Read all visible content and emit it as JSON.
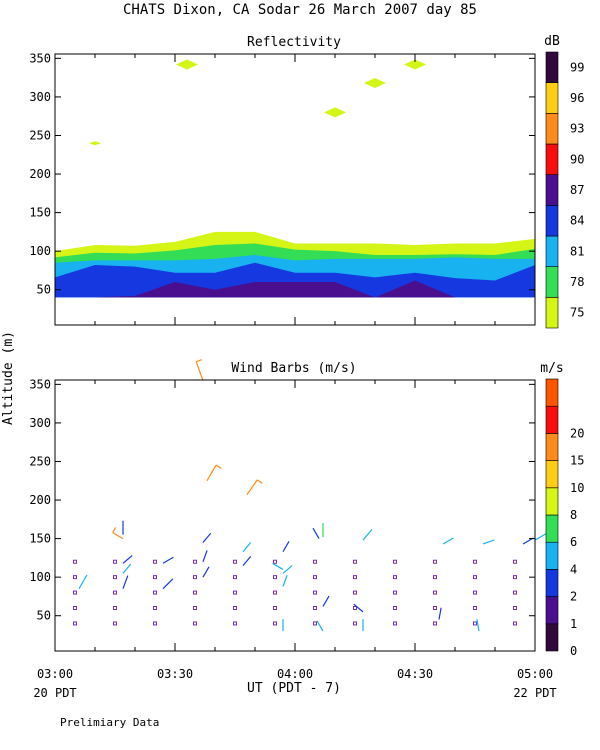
{
  "title": "CHATS Dixon, CA   Sodar  26 March 2007  day  85",
  "footer_note": "Prelimiary Data",
  "xlabel": "UT  (PDT - 7)",
  "ylabel": "Altitude (m)",
  "x_start_label": "20 PDT",
  "x_end_label": "22 PDT",
  "chart_data": [
    {
      "type": "area",
      "title": "Reflectivity",
      "unit_label": "dB",
      "xlim": [
        "03:00",
        "05:00"
      ],
      "xticks": [
        "03:00",
        "03:30",
        "04:00",
        "04:30",
        "05:00"
      ],
      "ylim": [
        25,
        355
      ],
      "yticks": [
        50,
        100,
        150,
        200,
        250,
        300,
        350
      ],
      "colorbar": {
        "levels": [
          75,
          78,
          81,
          84,
          87,
          90,
          93,
          96,
          99
        ],
        "colors": [
          "#d4f516",
          "#33dd55",
          "#18b2f0",
          "#1638e0",
          "#4a0f8f",
          "#fa0d0d",
          "#ff8c1a",
          "#ffcc14",
          "#2f0a3a"
        ]
      },
      "x_minutes": [
        0,
        10,
        20,
        30,
        40,
        50,
        60,
        70,
        80,
        90,
        100,
        110,
        120
      ],
      "bands": [
        {
          "level": 75,
          "top": [
            100,
            108,
            107,
            112,
            125,
            125,
            110,
            110,
            110,
            108,
            110,
            110,
            116
          ]
        },
        {
          "level": 78,
          "top": [
            92,
            98,
            97,
            101,
            108,
            110,
            102,
            100,
            95,
            95,
            96,
            95,
            103
          ]
        },
        {
          "level": 81,
          "top": [
            85,
            88,
            88,
            88,
            90,
            95,
            88,
            90,
            90,
            90,
            92,
            90,
            90
          ]
        },
        {
          "level": 84,
          "top": [
            66,
            82,
            80,
            72,
            72,
            85,
            72,
            72,
            66,
            72,
            65,
            62,
            82
          ]
        },
        {
          "level": 87,
          "top": [
            40,
            40,
            42,
            60,
            50,
            60,
            60,
            60,
            40,
            62,
            40,
            40,
            40
          ]
        }
      ],
      "patches": [
        {
          "time": "03:10",
          "altitude": 240,
          "level": 75
        },
        {
          "time": "03:33",
          "altitude": 342,
          "level": 75
        },
        {
          "time": "04:10",
          "altitude": 280,
          "level": 75
        },
        {
          "time": "04:20",
          "altitude": 318,
          "level": 75
        },
        {
          "time": "04:30",
          "altitude": 342,
          "level": 75
        }
      ]
    },
    {
      "type": "scatter",
      "title": "Wind Barbs (m/s)",
      "unit_label": "m/s",
      "xlim": [
        "03:00",
        "05:00"
      ],
      "xticks": [
        "03:00",
        "03:30",
        "04:00",
        "04:30",
        "05:00"
      ],
      "ylim": [
        25,
        355
      ],
      "yticks": [
        50,
        100,
        150,
        200,
        250,
        300,
        350
      ],
      "colorbar": {
        "levels": [
          0,
          1,
          2,
          4,
          6,
          8,
          10,
          15,
          20
        ],
        "colors": [
          "#2f0a3a",
          "#4a0f8f",
          "#1638e0",
          "#18b2f0",
          "#33dd55",
          "#d4f516",
          "#ffcc14",
          "#ff8c1a",
          "#fa0d0d",
          "#ff5500"
        ]
      },
      "calm_times_min": [
        5,
        15,
        25,
        35,
        45,
        55,
        65,
        75,
        85,
        95,
        105,
        115
      ],
      "calm_altitudes": [
        40,
        60,
        80,
        100,
        120
      ],
      "barbs": [
        {
          "t": 6,
          "alt": 85,
          "ang": 30,
          "len": 16,
          "c": "#18b2f0"
        },
        {
          "t": 17,
          "alt": 155,
          "ang": 0,
          "len": 14,
          "c": "#1638e0"
        },
        {
          "t": 17,
          "alt": 150,
          "ang": 300,
          "len": 12,
          "c": "#ff8c1a"
        },
        {
          "t": 17,
          "alt": 85,
          "ang": 20,
          "len": 14,
          "c": "#1638e0"
        },
        {
          "t": 17,
          "alt": 105,
          "ang": 40,
          "len": 12,
          "c": "#18b2f0"
        },
        {
          "t": 17,
          "alt": 118,
          "ang": 50,
          "len": 12,
          "c": "#1638e0"
        },
        {
          "t": 27,
          "alt": 118,
          "ang": 60,
          "len": 12,
          "c": "#1638e0"
        },
        {
          "t": 27,
          "alt": 85,
          "ang": 45,
          "len": 14,
          "c": "#1638e0"
        },
        {
          "t": 37,
          "alt": 145,
          "ang": 40,
          "len": 12,
          "c": "#1638e0"
        },
        {
          "t": 37,
          "alt": 120,
          "ang": 20,
          "len": 12,
          "c": "#1638e0"
        },
        {
          "t": 37,
          "alt": 100,
          "ang": 30,
          "len": 12,
          "c": "#1638e0"
        },
        {
          "t": 37,
          "alt": 355,
          "ang": 340,
          "len": 20,
          "c": "#ff8c1a"
        },
        {
          "t": 38,
          "alt": 225,
          "ang": 30,
          "len": 18,
          "c": "#ff8c1a"
        },
        {
          "t": 47,
          "alt": 133,
          "ang": 40,
          "len": 12,
          "c": "#18b2f0"
        },
        {
          "t": 47,
          "alt": 115,
          "ang": 40,
          "len": 12,
          "c": "#1638e0"
        },
        {
          "t": 48,
          "alt": 207,
          "ang": 35,
          "len": 18,
          "c": "#ff8c1a"
        },
        {
          "t": 57,
          "alt": 133,
          "ang": 30,
          "len": 12,
          "c": "#1638e0"
        },
        {
          "t": 57,
          "alt": 110,
          "ang": 300,
          "len": 12,
          "c": "#18b2f0"
        },
        {
          "t": 57,
          "alt": 105,
          "ang": 50,
          "len": 12,
          "c": "#18b2f0"
        },
        {
          "t": 57,
          "alt": 88,
          "ang": 20,
          "len": 12,
          "c": "#18b2f0"
        },
        {
          "t": 57,
          "alt": 30,
          "ang": 0,
          "len": 12,
          "c": "#18b2f0"
        },
        {
          "t": 66,
          "alt": 150,
          "ang": 330,
          "len": 12,
          "c": "#1638e0"
        },
        {
          "t": 67,
          "alt": 152,
          "ang": 0,
          "len": 14,
          "c": "#33dd55"
        },
        {
          "t": 67,
          "alt": 62,
          "ang": 30,
          "len": 12,
          "c": "#1638e0"
        },
        {
          "t": 67,
          "alt": 30,
          "ang": 330,
          "len": 12,
          "c": "#18b2f0"
        },
        {
          "t": 77,
          "alt": 148,
          "ang": 40,
          "len": 14,
          "c": "#18b2f0"
        },
        {
          "t": 77,
          "alt": 55,
          "ang": 310,
          "len": 12,
          "c": "#1638e0"
        },
        {
          "t": 77,
          "alt": 30,
          "ang": 0,
          "len": 12,
          "c": "#18b2f0"
        },
        {
          "t": 96,
          "alt": 45,
          "ang": 10,
          "len": 12,
          "c": "#1638e0"
        },
        {
          "t": 97,
          "alt": 143,
          "ang": 60,
          "len": 12,
          "c": "#18b2f0"
        },
        {
          "t": 106,
          "alt": 30,
          "ang": 350,
          "len": 12,
          "c": "#18b2f0"
        },
        {
          "t": 107,
          "alt": 143,
          "ang": 70,
          "len": 12,
          "c": "#18b2f0"
        },
        {
          "t": 117,
          "alt": 143,
          "ang": 60,
          "len": 12,
          "c": "#1638e0"
        },
        {
          "t": 120,
          "alt": 148,
          "ang": 60,
          "len": 14,
          "c": "#18b2f0"
        }
      ]
    }
  ]
}
